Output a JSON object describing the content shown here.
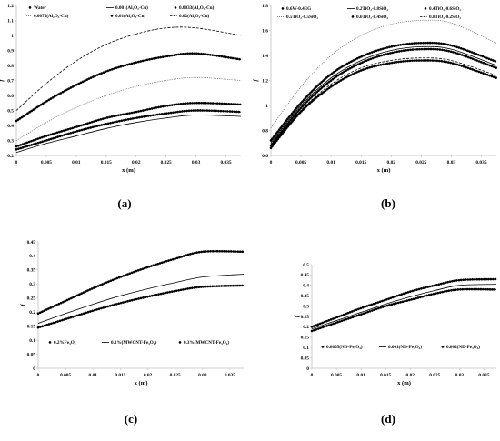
{
  "figure": {
    "panels": [
      "(a)",
      "(b)",
      "(c)",
      "(d)"
    ]
  },
  "chart_data": [
    {
      "type": "line",
      "panel_label": "(a)",
      "xlabel": "x (m)",
      "ylabel": "f",
      "xlim": [
        0,
        0.0375
      ],
      "ylim": [
        0.2,
        1.2
      ],
      "xticks": [
        "0",
        "0.005",
        "0.01",
        "0.015",
        "0.02",
        "0.025",
        "0.03",
        "0.035"
      ],
      "yticks": [
        "0.2",
        "0.3",
        "0.4",
        "0.5",
        "0.6",
        "0.7",
        "0.8",
        "0.9",
        "1",
        "1.1",
        "1.2"
      ],
      "legend_position": "top",
      "grid": false,
      "series": [
        {
          "name": "Water",
          "style": "dots",
          "x": [
            0,
            0.005,
            0.01,
            0.015,
            0.02,
            0.025,
            0.03,
            0.0375
          ],
          "y": [
            0.24,
            0.3,
            0.36,
            0.41,
            0.45,
            0.48,
            0.5,
            0.49
          ]
        },
        {
          "name": "0.001(Al₂O₃-Cu)",
          "style": "solid",
          "x": [
            0,
            0.005,
            0.01,
            0.015,
            0.02,
            0.025,
            0.03,
            0.0375
          ],
          "y": [
            0.22,
            0.28,
            0.33,
            0.38,
            0.42,
            0.45,
            0.47,
            0.46
          ]
        },
        {
          "name": "0.0033(Al₂O₃-Cu)",
          "style": "dots",
          "x": [
            0,
            0.005,
            0.01,
            0.015,
            0.02,
            0.025,
            0.03,
            0.0375
          ],
          "y": [
            0.26,
            0.33,
            0.39,
            0.45,
            0.49,
            0.53,
            0.55,
            0.54
          ]
        },
        {
          "name": "0.0075(Al₂O₃-Cu)",
          "style": "dotted",
          "x": [
            0,
            0.005,
            0.01,
            0.015,
            0.02,
            0.025,
            0.03,
            0.0375
          ],
          "y": [
            0.3,
            0.42,
            0.52,
            0.6,
            0.66,
            0.7,
            0.72,
            0.7
          ]
        },
        {
          "name": "0.01(Al₂O₃-Cu)",
          "style": "dots",
          "x": [
            0,
            0.005,
            0.01,
            0.015,
            0.02,
            0.025,
            0.03,
            0.0375
          ],
          "y": [
            0.43,
            0.56,
            0.67,
            0.76,
            0.82,
            0.86,
            0.88,
            0.84
          ]
        },
        {
          "name": "0.02(Al₂O₃-Cu)",
          "style": "dashed",
          "x": [
            0,
            0.005,
            0.01,
            0.015,
            0.02,
            0.025,
            0.03,
            0.0375
          ],
          "y": [
            0.5,
            0.68,
            0.83,
            0.94,
            1.01,
            1.05,
            1.05,
            1.0
          ]
        }
      ]
    },
    {
      "type": "line",
      "panel_label": "(b)",
      "xlabel": "x (m)",
      "ylabel": "f",
      "xlim": [
        0,
        0.0375
      ],
      "ylim": [
        0.6,
        1.8
      ],
      "xticks": [
        "0",
        "0.005",
        "0.01",
        "0.015",
        "0.02",
        "0.025",
        "0.03",
        "0.035"
      ],
      "yticks": [
        "0.6",
        "0.8",
        "1",
        "1.2",
        "1.4",
        "1.6",
        "1.8"
      ],
      "legend_position": "top",
      "grid": false,
      "series": [
        {
          "name": "0.6W-0.4EG",
          "style": "dots",
          "x": [
            0,
            0.005,
            0.01,
            0.015,
            0.02,
            0.025,
            0.03,
            0.0375
          ],
          "y": [
            0.66,
            0.95,
            1.15,
            1.28,
            1.34,
            1.36,
            1.34,
            1.22
          ]
        },
        {
          "name": "0.2TiO₂-0.8SiO₂",
          "style": "solid",
          "x": [
            0,
            0.005,
            0.01,
            0.015,
            0.02,
            0.025,
            0.03,
            0.0375
          ],
          "y": [
            0.7,
            1.0,
            1.22,
            1.36,
            1.44,
            1.47,
            1.45,
            1.32
          ]
        },
        {
          "name": "0.4TiO₂-0.6SiO₂",
          "style": "dots",
          "x": [
            0,
            0.005,
            0.01,
            0.015,
            0.02,
            0.025,
            0.03,
            0.0375
          ],
          "y": [
            0.72,
            1.02,
            1.25,
            1.39,
            1.47,
            1.5,
            1.48,
            1.35
          ]
        },
        {
          "name": "0.5TiO₂-0.5SiO₂",
          "style": "dotted",
          "x": [
            0,
            0.005,
            0.01,
            0.015,
            0.02,
            0.025,
            0.03,
            0.0375
          ],
          "y": [
            0.82,
            1.15,
            1.4,
            1.56,
            1.65,
            1.68,
            1.66,
            1.5
          ]
        },
        {
          "name": "0.6TiO₂-0.4SiO₂",
          "style": "dots",
          "x": [
            0,
            0.005,
            0.01,
            0.015,
            0.02,
            0.025,
            0.03,
            0.0375
          ],
          "y": [
            0.68,
            0.98,
            1.2,
            1.34,
            1.42,
            1.45,
            1.43,
            1.3
          ]
        },
        {
          "name": "0.8TiO₂-0.2SiO₂",
          "style": "dashed",
          "x": [
            0,
            0.005,
            0.01,
            0.015,
            0.02,
            0.025,
            0.03,
            0.0375
          ],
          "y": [
            0.67,
            0.96,
            1.17,
            1.3,
            1.36,
            1.38,
            1.36,
            1.24
          ]
        }
      ]
    },
    {
      "type": "line",
      "panel_label": "(c)",
      "xlabel": "x (m)",
      "ylabel": "f",
      "xlim": [
        0,
        0.0375
      ],
      "ylim": [
        0,
        0.45
      ],
      "xticks": [
        "0",
        "0.005",
        "0.01",
        "0.015",
        "0.02",
        "0.025",
        "0.03",
        "0.035"
      ],
      "yticks": [
        "0",
        "0.05",
        "0.1",
        "0.15",
        "0.2",
        "0.25",
        "0.3",
        "0.35",
        "0.4",
        "0.45"
      ],
      "legend_position": "bottom",
      "grid": false,
      "series": [
        {
          "name": "0.2%Fe₃O₄",
          "style": "dots",
          "x": [
            0,
            0.005,
            0.01,
            0.015,
            0.02,
            0.025,
            0.03,
            0.0375
          ],
          "y": [
            0.145,
            0.175,
            0.205,
            0.232,
            0.255,
            0.275,
            0.29,
            0.295
          ]
        },
        {
          "name": "0.1%(MWCNT-Fe₃O₄)",
          "style": "solid",
          "x": [
            0,
            0.005,
            0.01,
            0.015,
            0.02,
            0.025,
            0.03,
            0.0375
          ],
          "y": [
            0.16,
            0.195,
            0.228,
            0.258,
            0.283,
            0.305,
            0.325,
            0.335
          ]
        },
        {
          "name": "0.3%(MWCNT-Fe₃O₄)",
          "style": "dots",
          "x": [
            0,
            0.005,
            0.01,
            0.015,
            0.02,
            0.025,
            0.03,
            0.0375
          ],
          "y": [
            0.195,
            0.24,
            0.285,
            0.325,
            0.36,
            0.39,
            0.415,
            0.415
          ]
        }
      ]
    },
    {
      "type": "line",
      "panel_label": "(d)",
      "xlabel": "x (m)",
      "ylabel": "f",
      "xlim": [
        0,
        0.0375
      ],
      "ylim": [
        0,
        0.5
      ],
      "xticks": [
        "0",
        "0.005",
        "0.01",
        "0.015",
        "0.02",
        "0.025",
        "0.03",
        "0.035"
      ],
      "yticks": [
        "0",
        "0.05",
        "0.1",
        "0.15",
        "0.2",
        "0.25",
        "0.3",
        "0.35",
        "0.4",
        "0.45",
        "0.5"
      ],
      "legend_position": "bottom",
      "grid": false,
      "series": [
        {
          "name": "0.0005(ND-Fe₃O₄)",
          "style": "dots",
          "x": [
            0,
            0.005,
            0.01,
            0.015,
            0.02,
            0.025,
            0.03,
            0.0375
          ],
          "y": [
            0.18,
            0.22,
            0.26,
            0.3,
            0.33,
            0.36,
            0.38,
            0.38
          ]
        },
        {
          "name": "0.001(ND-Fe₃O₄)",
          "style": "solid",
          "x": [
            0,
            0.005,
            0.01,
            0.015,
            0.02,
            0.025,
            0.03,
            0.0375
          ],
          "y": [
            0.19,
            0.23,
            0.27,
            0.31,
            0.345,
            0.375,
            0.4,
            0.405
          ]
        },
        {
          "name": "0.002(ND-Fe₃O₄)",
          "style": "dots",
          "x": [
            0,
            0.005,
            0.01,
            0.015,
            0.02,
            0.025,
            0.03,
            0.0375
          ],
          "y": [
            0.2,
            0.245,
            0.29,
            0.33,
            0.37,
            0.4,
            0.425,
            0.43
          ]
        }
      ]
    }
  ]
}
